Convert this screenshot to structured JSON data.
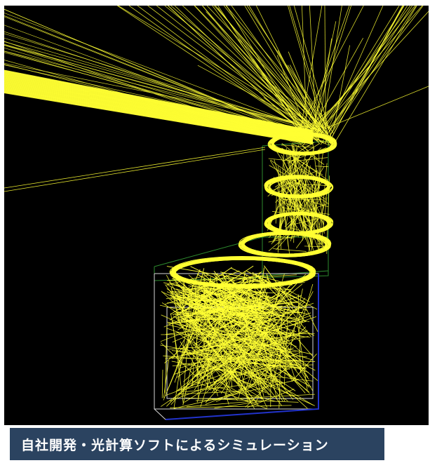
{
  "caption": {
    "text": "自社開発・光計算ソフトによるシミュレーション"
  },
  "colors": {
    "background": "#000000",
    "frame": "#ffffff",
    "rays": "#ffff33",
    "device_outline_green": "#2e8b2e",
    "device_outline_white": "#d8d8d8",
    "device_edge_blue": "#2233cc",
    "caption_bar": "#2b4360",
    "caption_text": "#ffffff"
  },
  "scene": {
    "subject": "ray-trace-simulation",
    "icon": "light-ray-icon"
  }
}
